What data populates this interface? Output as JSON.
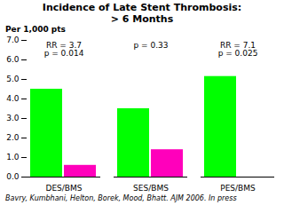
{
  "chart_data": {
    "type": "bar",
    "title": "Incidence of Late Stent Thrombosis:\n> 6 Months",
    "ylabel": "Per 1,000 pts",
    "categories": [
      "DES/BMS",
      "SES/BMS",
      "PES/BMS"
    ],
    "series": [
      {
        "color": "#00FF00",
        "values": [
          4.5,
          3.5,
          5.15
        ]
      },
      {
        "color": "#FF00BB",
        "values": [
          0.6,
          1.4,
          0.0
        ]
      }
    ],
    "ylim": [
      0,
      7
    ],
    "yticks": [
      0,
      1,
      2,
      3,
      4,
      5,
      6,
      7
    ],
    "annotations": [
      {
        "category": "DES/BMS",
        "text": "RR = 3.7\np = 0.014"
      },
      {
        "category": "SES/BMS",
        "text": "p = 0.33"
      },
      {
        "category": "PES/BMS",
        "text": "RR = 7.1\np = 0.025"
      }
    ],
    "footnote": "Bavry, Kumbhani, Helton, Borek, Mood, Bhatt. AJM 2006. In press"
  }
}
